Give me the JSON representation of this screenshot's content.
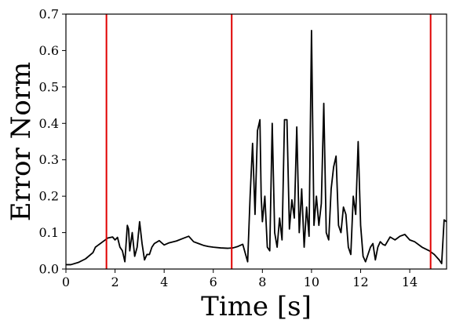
{
  "chart_data": {
    "type": "line",
    "title": "",
    "xlabel": "Time [s]",
    "ylabel": "Error Norm",
    "xlim": [
      0,
      15.5
    ],
    "ylim": [
      0,
      0.7
    ],
    "xticks": [
      0,
      2,
      4,
      6,
      8,
      10,
      12,
      14
    ],
    "xtick_labels": [
      "0",
      "2",
      "4",
      "6",
      "8",
      "10",
      "12",
      "14"
    ],
    "yticks": [
      0,
      0.1,
      0.2,
      0.3,
      0.4,
      0.5,
      0.6,
      0.7
    ],
    "ytick_labels": [
      "0.0",
      "0.1",
      "0.2",
      "0.3",
      "0.4",
      "0.5",
      "0.6",
      "0.7"
    ],
    "grid": false,
    "series": [
      {
        "color": "#000000",
        "x": [
          0,
          0.2,
          0.5,
          0.8,
          1.1,
          1.2,
          1.3,
          1.5,
          1.7,
          1.9,
          2.0,
          2.1,
          2.2,
          2.3,
          2.4,
          2.5,
          2.55,
          2.6,
          2.7,
          2.8,
          2.9,
          3.0,
          3.1,
          3.2,
          3.3,
          3.4,
          3.5,
          3.6,
          3.8,
          4.0,
          4.2,
          4.5,
          4.8,
          5.0,
          5.2,
          5.4,
          5.6,
          5.8,
          6.0,
          6.3,
          6.6,
          6.8,
          7.0,
          7.2,
          7.4,
          7.5,
          7.6,
          7.7,
          7.8,
          7.9,
          7.95,
          8.0,
          8.1,
          8.2,
          8.3,
          8.4,
          8.5,
          8.6,
          8.7,
          8.8,
          8.9,
          9.0,
          9.1,
          9.2,
          9.3,
          9.4,
          9.5,
          9.6,
          9.7,
          9.8,
          9.9,
          10.0,
          10.1,
          10.2,
          10.3,
          10.4,
          10.5,
          10.6,
          10.7,
          10.8,
          10.9,
          11.0,
          11.1,
          11.2,
          11.3,
          11.4,
          11.5,
          11.6,
          11.7,
          11.8,
          11.9,
          12.0,
          12.1,
          12.2,
          12.4,
          12.5,
          12.6,
          12.7,
          12.8,
          12.9,
          13.0,
          13.2,
          13.4,
          13.6,
          13.8,
          14.0,
          14.2,
          14.5,
          14.8,
          15.0,
          15.2,
          15.3,
          15.4,
          15.5
        ],
        "y": [
          0.012,
          0.012,
          0.018,
          0.028,
          0.045,
          0.06,
          0.065,
          0.075,
          0.085,
          0.088,
          0.08,
          0.087,
          0.06,
          0.05,
          0.02,
          0.12,
          0.11,
          0.05,
          0.1,
          0.035,
          0.06,
          0.13,
          0.07,
          0.025,
          0.04,
          0.04,
          0.06,
          0.07,
          0.078,
          0.066,
          0.072,
          0.077,
          0.085,
          0.09,
          0.075,
          0.07,
          0.065,
          0.062,
          0.06,
          0.058,
          0.057,
          0.058,
          0.062,
          0.068,
          0.02,
          0.2,
          0.345,
          0.15,
          0.38,
          0.41,
          0.2,
          0.13,
          0.2,
          0.06,
          0.05,
          0.4,
          0.1,
          0.06,
          0.14,
          0.08,
          0.41,
          0.41,
          0.11,
          0.19,
          0.14,
          0.39,
          0.1,
          0.22,
          0.06,
          0.17,
          0.09,
          0.655,
          0.12,
          0.2,
          0.12,
          0.18,
          0.455,
          0.1,
          0.08,
          0.22,
          0.28,
          0.31,
          0.12,
          0.1,
          0.17,
          0.15,
          0.06,
          0.04,
          0.2,
          0.15,
          0.35,
          0.12,
          0.035,
          0.02,
          0.06,
          0.07,
          0.025,
          0.06,
          0.075,
          0.068,
          0.065,
          0.088,
          0.08,
          0.09,
          0.095,
          0.08,
          0.075,
          0.06,
          0.05,
          0.04,
          0.025,
          0.015,
          0.135,
          0.13
        ]
      }
    ],
    "vlines": {
      "color": "#e00000",
      "x": [
        1.65,
        6.75,
        14.85
      ]
    }
  }
}
